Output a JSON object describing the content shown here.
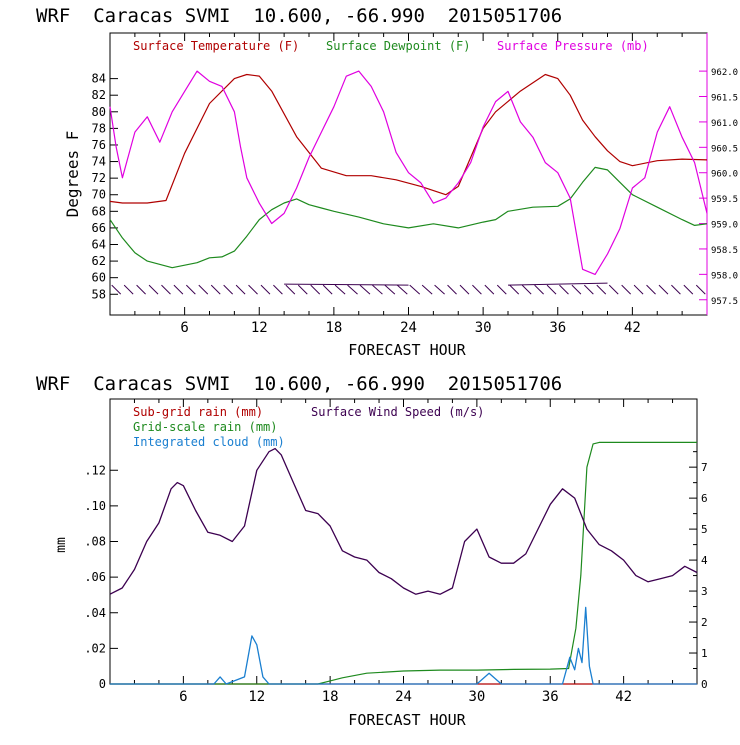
{
  "colors": {
    "temp": "#b00000",
    "dew": "#1e8a1e",
    "pres": "#e000e0",
    "subgrid": "#b00000",
    "grid": "#1e8a1e",
    "cloud": "#1a7fd0",
    "wind": "#3c0050",
    "axis": "#000000"
  },
  "chart_data": [
    {
      "type": "line",
      "title": "WRF  Caracas SVMI  10.600, -66.990  2015051706",
      "xlabel": "FORECAST HOUR",
      "ylabel": "Degrees F",
      "xlim": [
        0,
        48
      ],
      "ylim": [
        55.5,
        89.5
      ],
      "xticks": [
        6,
        12,
        18,
        24,
        30,
        36,
        42
      ],
      "xtick_labels": [
        "6",
        "12",
        "18",
        "24",
        "30",
        "36",
        "42"
      ],
      "yticks": [
        58,
        60,
        62,
        64,
        66,
        68,
        70,
        72,
        74,
        76,
        78,
        80,
        82,
        84
      ],
      "ytick_labels": [
        "58",
        "60",
        "62",
        "64",
        "66",
        "68",
        "70",
        "72",
        "74",
        "76",
        "78",
        "80",
        "82",
        "84"
      ],
      "y2lim": [
        957.2,
        962.75
      ],
      "y2ticks": [
        957.5,
        958.0,
        958.5,
        959.0,
        959.5,
        960.0,
        960.5,
        961.0,
        961.5,
        962.0
      ],
      "y2tick_labels": [
        "957.5",
        "958.0",
        "958.5",
        "959.0",
        "959.5",
        "960.0",
        "960.5",
        "961.0",
        "961.5",
        "962.0"
      ],
      "legend": [
        "Surface Temperature (F)",
        "Surface Dewpoint (F)",
        "Surface Pressure (mb)"
      ],
      "series": [
        {
          "name": "Surface Temperature (F)",
          "axis": "left",
          "x": [
            0,
            1,
            3,
            4.5,
            6,
            8,
            10,
            11,
            12,
            13,
            15,
            17,
            19,
            21,
            23,
            25,
            26,
            27,
            28,
            30,
            31,
            33,
            35,
            36,
            37,
            38,
            39,
            40,
            41,
            42,
            44,
            46,
            48
          ],
          "y": [
            69.2,
            69,
            69,
            69.3,
            75,
            81,
            84,
            84.5,
            84.3,
            82.5,
            77,
            73.2,
            72.3,
            72.3,
            71.8,
            71,
            70.5,
            70,
            71,
            78,
            80,
            82.5,
            84.5,
            84,
            82,
            79,
            77,
            75.3,
            74,
            73.5,
            74.1,
            74.3,
            74.2
          ]
        },
        {
          "name": "Surface Dewpoint (F)",
          "axis": "left",
          "x": [
            0,
            1,
            2,
            3,
            5,
            7,
            8,
            9,
            10,
            11,
            12,
            13,
            14,
            15,
            16,
            17,
            18,
            20,
            22,
            24,
            26,
            28,
            30,
            31,
            32,
            34,
            36,
            37,
            38,
            39,
            40,
            41,
            42,
            44,
            46,
            47,
            48
          ],
          "y": [
            67,
            64.8,
            63,
            62,
            61.2,
            61.8,
            62.4,
            62.5,
            63.2,
            65,
            67,
            68.2,
            69,
            69.5,
            68.8,
            68.4,
            68,
            67.3,
            66.5,
            66,
            66.5,
            66,
            66.7,
            67,
            68,
            68.5,
            68.6,
            69.5,
            71.5,
            73.3,
            73,
            71.5,
            70,
            68.5,
            67,
            66.3,
            66.5
          ]
        },
        {
          "name": "Surface Pressure (mb)",
          "axis": "right",
          "x": [
            0,
            0.5,
            1,
            2,
            3,
            4,
            5,
            6,
            7,
            8,
            9,
            10,
            10.5,
            11,
            12,
            13,
            14,
            15,
            16,
            17,
            18,
            19,
            20,
            21,
            22,
            23,
            24,
            25,
            26,
            27,
            28,
            29,
            30,
            31,
            32,
            33,
            34,
            35,
            36,
            37,
            38,
            39,
            40,
            41,
            42,
            43,
            44,
            45,
            46,
            47,
            48
          ],
          "y": [
            961.3,
            960.5,
            959.9,
            960.8,
            961.1,
            960.6,
            961.2,
            961.6,
            962.0,
            961.8,
            961.7,
            961.2,
            960.5,
            959.9,
            959.4,
            959.0,
            959.2,
            959.7,
            960.3,
            960.8,
            961.3,
            961.9,
            962.0,
            961.7,
            961.2,
            960.4,
            960.0,
            959.8,
            959.4,
            959.5,
            959.8,
            960.2,
            960.9,
            961.4,
            961.6,
            961.0,
            960.7,
            960.2,
            960.0,
            959.5,
            958.1,
            958.0,
            958.4,
            958.9,
            959.7,
            959.9,
            960.8,
            961.3,
            960.7,
            960.2,
            959.2
          ]
        }
      ],
      "wind_barbs": {
        "x_start": 0.5,
        "x_end": 48,
        "step": 1.0,
        "level": 58.5
      }
    },
    {
      "type": "line",
      "title": "WRF  Caracas SVMI  10.600, -66.990  2015051706",
      "xlabel": "FORECAST HOUR",
      "ylabel": "mm",
      "xlim": [
        0,
        48
      ],
      "ylim": [
        0,
        0.16
      ],
      "xticks": [
        6,
        12,
        18,
        24,
        30,
        36,
        42
      ],
      "xtick_labels": [
        "6",
        "12",
        "18",
        "24",
        "30",
        "36",
        "42"
      ],
      "yticks": [
        0,
        0.02,
        0.04,
        0.06,
        0.08,
        0.1,
        0.12
      ],
      "ytick_labels": [
        "0",
        ".02",
        ".04",
        ".06",
        ".08",
        ".10",
        ".12"
      ],
      "y2lim": [
        0,
        9.2
      ],
      "y2ticks": [
        0,
        1,
        2,
        3,
        4,
        5,
        6,
        7
      ],
      "y2tick_labels": [
        "0",
        "1",
        "2",
        "3",
        "4",
        "5",
        "6",
        "7"
      ],
      "legend": [
        "Sub-grid rain (mm)",
        "Grid-scale rain (mm)",
        "Integrated cloud (mm)",
        "Surface Wind Speed (m/s)"
      ],
      "series": [
        {
          "name": "Sub-grid rain (mm)",
          "axis": "left",
          "x": [
            0,
            48
          ],
          "y": [
            0,
            0
          ]
        },
        {
          "name": "Grid-scale rain (mm)",
          "axis": "right",
          "x": [
            0,
            17,
            18,
            19,
            21,
            24,
            27,
            30,
            33,
            36,
            37.5,
            38.1,
            38.5,
            39.0,
            39.5,
            40,
            44,
            48
          ],
          "y": [
            0,
            0,
            0.1,
            0.2,
            0.35,
            0.42,
            0.45,
            0.45,
            0.47,
            0.48,
            0.5,
            1.8,
            3.5,
            7.0,
            7.75,
            7.8,
            7.8,
            7.8
          ]
        },
        {
          "name": "Integrated cloud (mm)",
          "axis": "left",
          "x": [
            0,
            8.5,
            9,
            9.5,
            11,
            11.6,
            12,
            12.5,
            13,
            14,
            30,
            31,
            32,
            37,
            37.6,
            38.0,
            38.3,
            38.6,
            38.9,
            39.2,
            39.5,
            40,
            48
          ],
          "y": [
            0,
            0,
            0.004,
            0,
            0.004,
            0.027,
            0.022,
            0.004,
            0,
            0,
            0,
            0.006,
            0,
            0,
            0.015,
            0.008,
            0.02,
            0.012,
            0.043,
            0.01,
            0,
            0,
            0
          ]
        },
        {
          "name": "Surface Wind Speed (m/s)",
          "axis": "right",
          "x": [
            0,
            1,
            2,
            3,
            4,
            5,
            5.5,
            6,
            7,
            8,
            9,
            10,
            11,
            12,
            13,
            13.5,
            14,
            15,
            16,
            17,
            18,
            19,
            20,
            21,
            22,
            23,
            24,
            25,
            26,
            27,
            28,
            29,
            30,
            31,
            32,
            33,
            34,
            35,
            36,
            37,
            38,
            39,
            40,
            41,
            42,
            43,
            44,
            45,
            46,
            47,
            48
          ],
          "y": [
            2.9,
            3.1,
            3.7,
            4.6,
            5.2,
            6.3,
            6.5,
            6.4,
            5.6,
            4.9,
            4.8,
            4.6,
            5.1,
            6.9,
            7.5,
            7.6,
            7.4,
            6.5,
            5.6,
            5.5,
            5.1,
            4.3,
            4.1,
            4.0,
            3.6,
            3.4,
            3.1,
            2.9,
            3.0,
            2.9,
            3.1,
            4.6,
            5.0,
            4.1,
            3.9,
            3.9,
            4.2,
            5.0,
            5.8,
            6.3,
            6.0,
            5.0,
            4.5,
            4.3,
            4.0,
            3.5,
            3.3,
            3.4,
            3.5,
            3.8,
            3.6
          ]
        }
      ]
    }
  ]
}
